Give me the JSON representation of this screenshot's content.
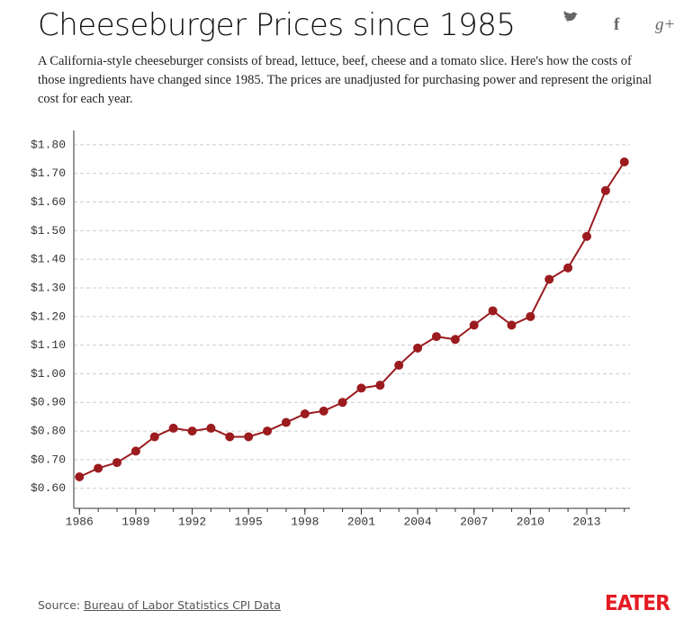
{
  "chart_data": {
    "type": "line",
    "title": "Cheeseburger Prices since 1985",
    "subtitle": "A California-style cheeseburger consists of bread, lettuce, beef, cheese and a tomato slice. Here's how the costs of those ingredients have changed since 1985. The prices are unadjusted for purchasing power and represent the original cost for each year.",
    "x": [
      1986,
      1987,
      1988,
      1989,
      1990,
      1991,
      1992,
      1993,
      1994,
      1995,
      1996,
      1997,
      1998,
      1999,
      2000,
      2001,
      2002,
      2003,
      2004,
      2005,
      2006,
      2007,
      2008,
      2009,
      2010,
      2011,
      2012,
      2013,
      2014,
      2015
    ],
    "series": [
      {
        "color": "#9b1b1f",
        "values": [
          0.64,
          0.67,
          0.69,
          0.73,
          0.78,
          0.81,
          0.8,
          0.81,
          0.78,
          0.78,
          0.8,
          0.83,
          0.86,
          0.87,
          0.9,
          0.95,
          0.96,
          1.03,
          1.09,
          1.13,
          1.12,
          1.17,
          1.22,
          1.17,
          1.2,
          1.33,
          1.37,
          1.48,
          1.64,
          1.74
        ]
      }
    ],
    "xlim": [
      1985.7,
      2015.3
    ],
    "xticks": [
      1986,
      1989,
      1992,
      1995,
      1998,
      2001,
      2004,
      2007,
      2010,
      2013
    ],
    "ylim": [
      0.53,
      1.85
    ],
    "yticks": [
      {
        "value": 0.6,
        "label": "$0.60"
      },
      {
        "value": 0.7,
        "label": "$0.70"
      },
      {
        "value": 0.8,
        "label": "$0.80"
      },
      {
        "value": 0.9,
        "label": "$0.90"
      },
      {
        "value": 1.0,
        "label": "$1.00"
      },
      {
        "value": 1.1,
        "label": "$1.10"
      },
      {
        "value": 1.2,
        "label": "$1.20"
      },
      {
        "value": 1.3,
        "label": "$1.30"
      },
      {
        "value": 1.4,
        "label": "$1.40"
      },
      {
        "value": 1.5,
        "label": "$1.50"
      },
      {
        "value": 1.6,
        "label": "$1.60"
      },
      {
        "value": 1.7,
        "label": "$1.70"
      },
      {
        "value": 1.8,
        "label": "$1.80"
      }
    ],
    "grid": true
  },
  "share_icons": [
    "f",
    "g+"
  ],
  "source": {
    "label": "Source:",
    "link": "Bureau of Labor Statistics CPI Data"
  },
  "brand": "EATER"
}
